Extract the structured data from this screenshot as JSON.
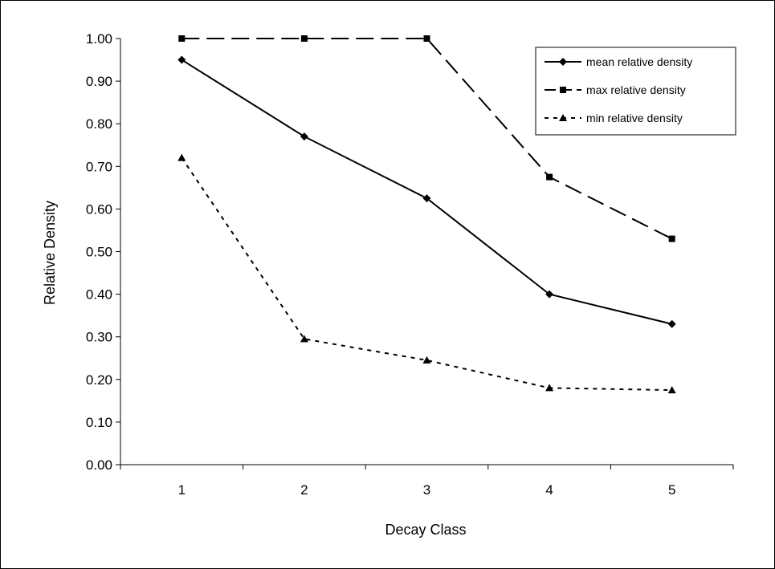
{
  "chart_data": {
    "type": "line",
    "xlabel": "Decay Class",
    "ylabel": "Relative Density",
    "categories": [
      "1",
      "2",
      "3",
      "4",
      "5"
    ],
    "ylim": [
      0,
      1
    ],
    "yticks": [
      "0.00",
      "0.10",
      "0.20",
      "0.30",
      "0.40",
      "0.50",
      "0.60",
      "0.70",
      "0.80",
      "0.90",
      "1.00"
    ],
    "grid": false,
    "legend_position": "top-right",
    "series": [
      {
        "name": "mean relative density",
        "values": [
          0.95,
          0.77,
          0.625,
          0.4,
          0.33
        ],
        "marker": "diamond",
        "line_style": "solid",
        "color": "#000000"
      },
      {
        "name": "max relative density",
        "values": [
          1.0,
          1.0,
          1.0,
          0.675,
          0.53
        ],
        "marker": "square",
        "line_style": "long-dash",
        "color": "#000000"
      },
      {
        "name": "min relative density",
        "values": [
          0.72,
          0.295,
          0.245,
          0.18,
          0.175
        ],
        "marker": "triangle",
        "line_style": "dotted",
        "color": "#000000"
      }
    ]
  }
}
